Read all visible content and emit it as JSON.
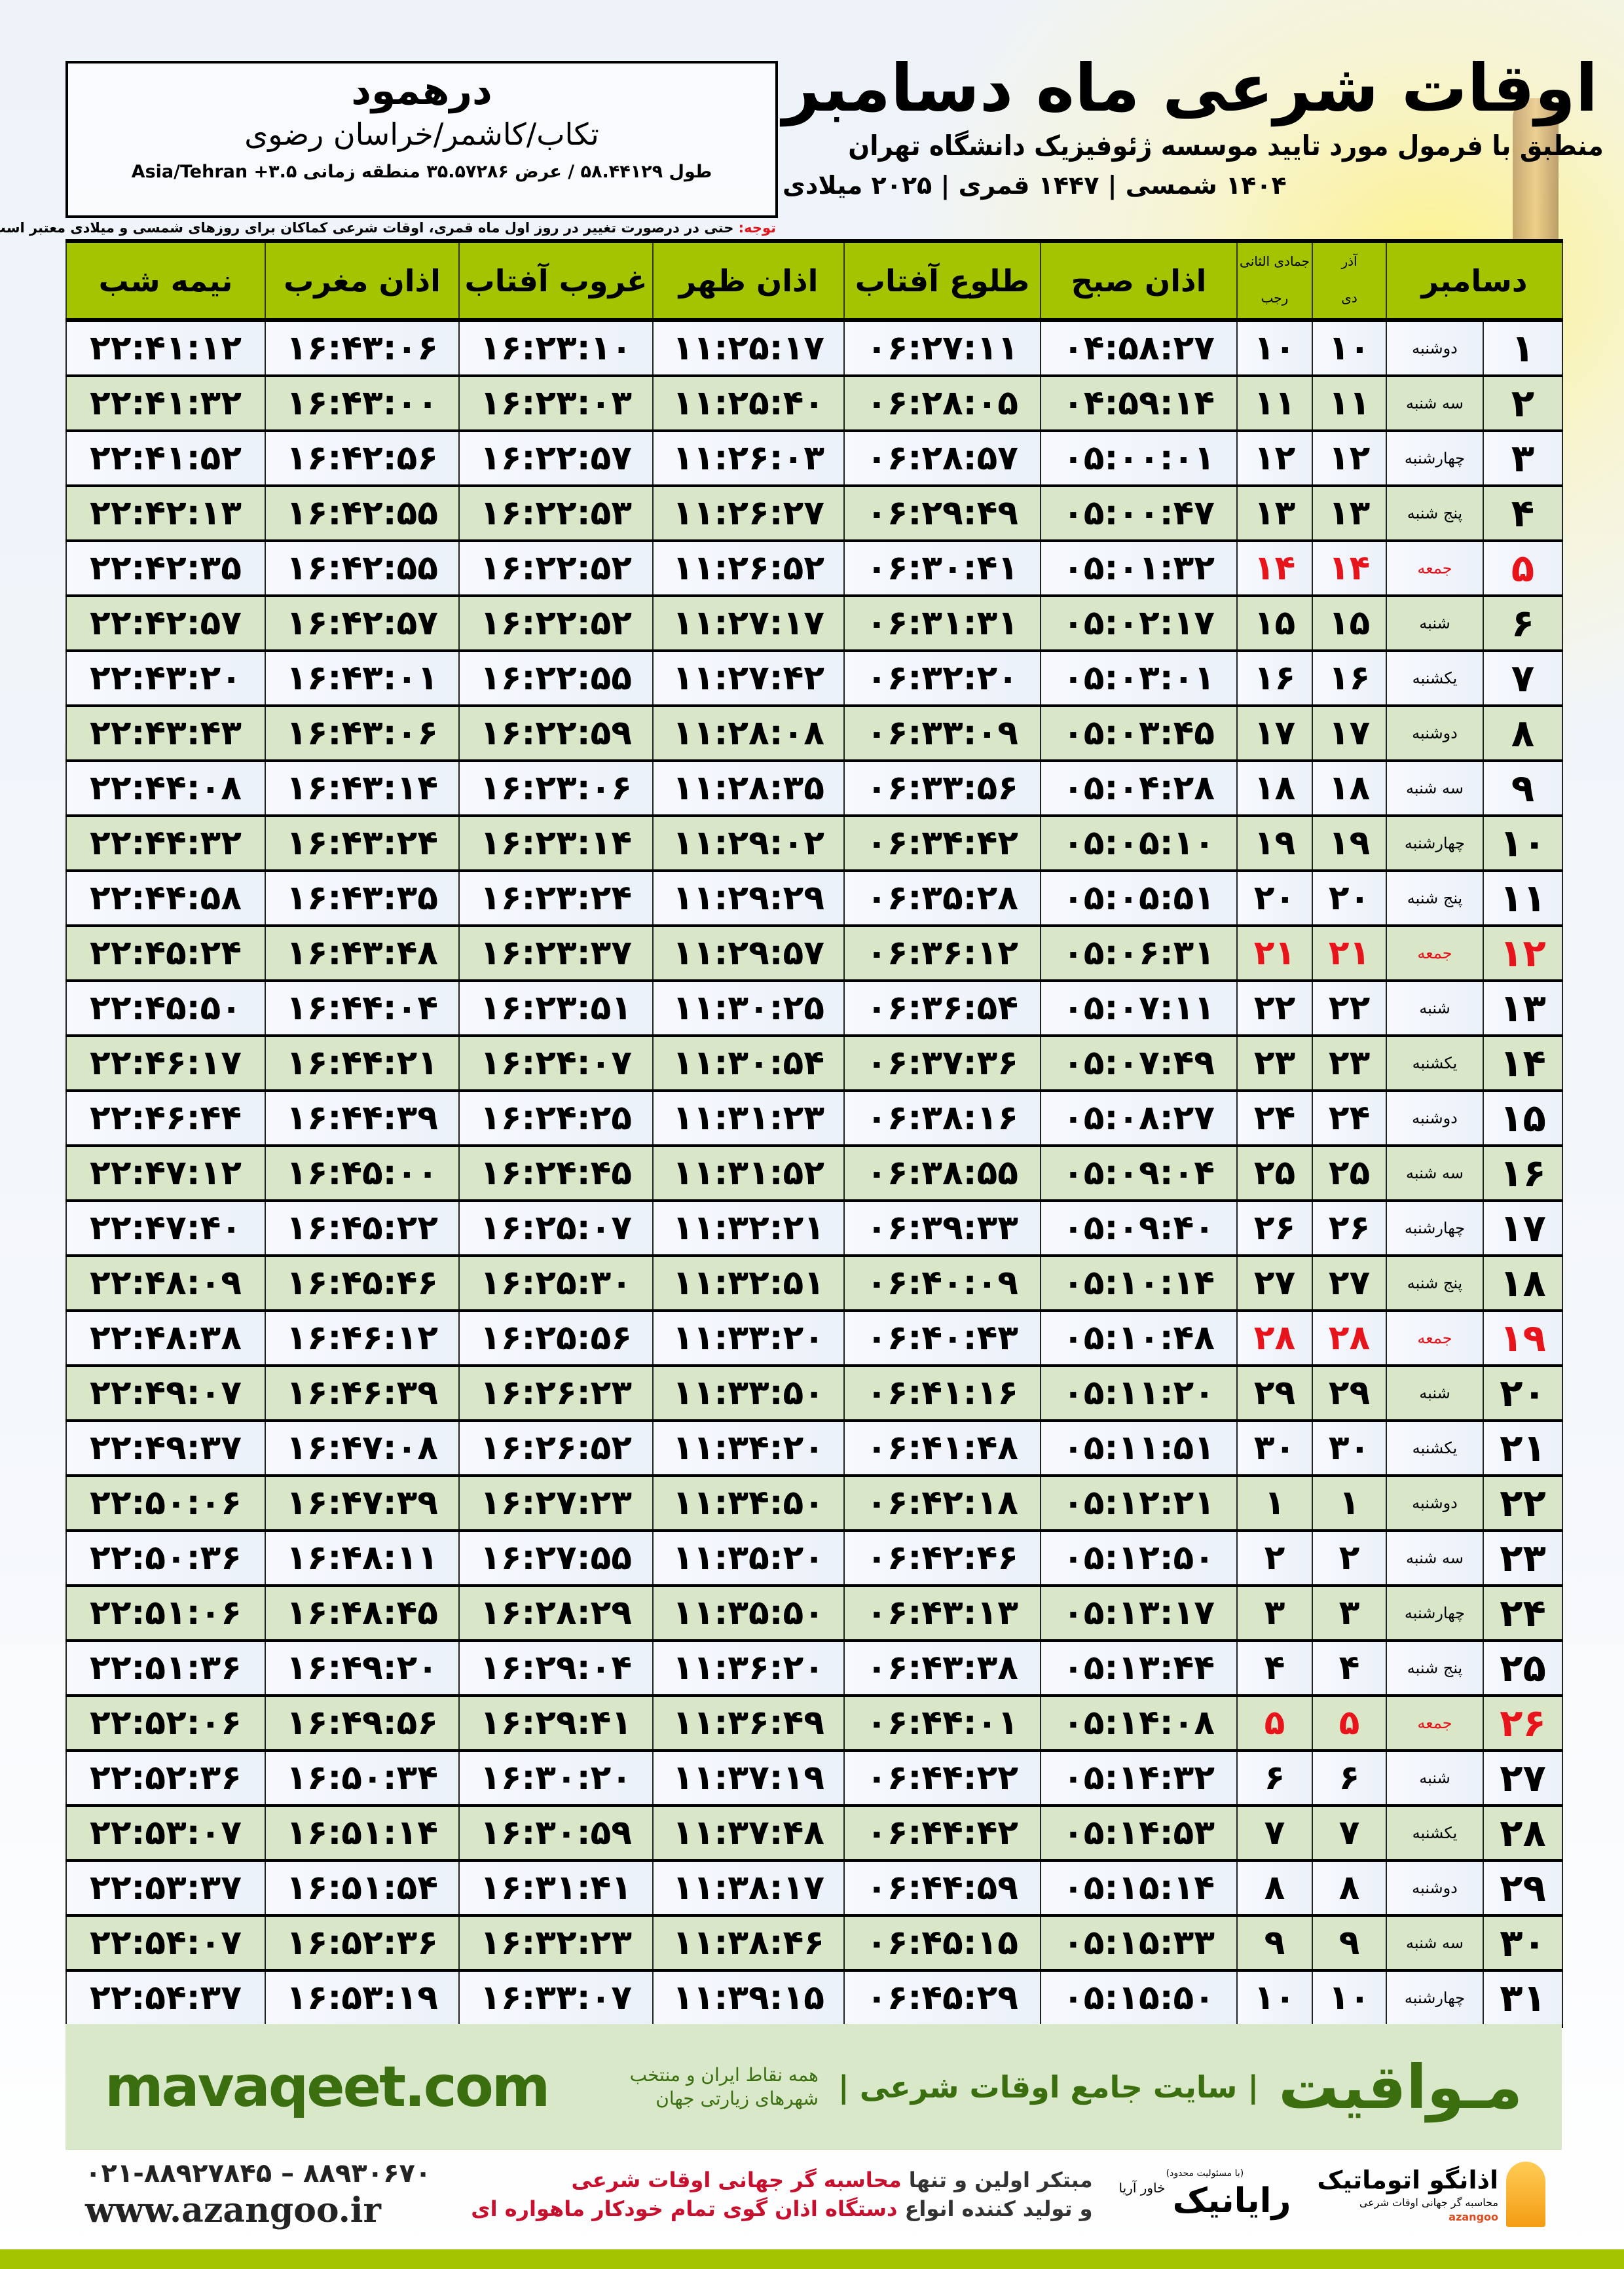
{
  "location": {
    "city": "درهمود",
    "region": "تکاب/کاشمر/خراسان رضوی",
    "coords": "طول ۵۸.۴۴۱۲۹ / عرض ۳۵.۵۷۲۸۶ منطقه زمانی ۳.۵+ Asia/Tehran"
  },
  "header": {
    "title": "اوقات شرعی ماه دسامبر",
    "subtitle": "منطبق با فرمول مورد تایید موسسه ژئوفیزیک دانشگاه تهران",
    "years": "۱۴۰۴ شمسی | ۱۴۴۷ قمری | ۲۰۲۵ میلادی",
    "note_label": "توجه:",
    "note_text": " حتی در درصورت تغییر در روز اول ماه قمری، اوقات شرعی کماکان برای روزهای شمسی و میلادی معتبر است."
  },
  "table": {
    "columns": {
      "day": "دسامبر",
      "shamsi_top": "آذر",
      "shamsi_bottom": "دی",
      "hijri_top": "جمادی الثانی",
      "hijri_bottom": "رجب",
      "fajr": "اذان صبح",
      "sunrise": "طلوع آفتاب",
      "dhuhr": "اذان ظهر",
      "sunset": "غروب آفتاب",
      "maghrib": "اذان مغرب",
      "midnight": "نیمه شب"
    },
    "colors": {
      "header": "#a5c400",
      "row_alt": "#d9e7c8",
      "friday": "#e8141c"
    },
    "rows": [
      [
        "۱",
        "دوشنبه",
        "۱۰",
        "۱۰",
        "۰۴:۵۸:۲۷",
        "۰۶:۲۷:۱۱",
        "۱۱:۲۵:۱۷",
        "۱۶:۲۳:۱۰",
        "۱۶:۴۳:۰۶",
        "۲۲:۴۱:۱۲"
      ],
      [
        "۲",
        "سه شنبه",
        "۱۱",
        "۱۱",
        "۰۴:۵۹:۱۴",
        "۰۶:۲۸:۰۵",
        "۱۱:۲۵:۴۰",
        "۱۶:۲۳:۰۳",
        "۱۶:۴۳:۰۰",
        "۲۲:۴۱:۳۲"
      ],
      [
        "۳",
        "چهارشنبه",
        "۱۲",
        "۱۲",
        "۰۵:۰۰:۰۱",
        "۰۶:۲۸:۵۷",
        "۱۱:۲۶:۰۳",
        "۱۶:۲۲:۵۷",
        "۱۶:۴۲:۵۶",
        "۲۲:۴۱:۵۲"
      ],
      [
        "۴",
        "پنج شنبه",
        "۱۳",
        "۱۳",
        "۰۵:۰۰:۴۷",
        "۰۶:۲۹:۴۹",
        "۱۱:۲۶:۲۷",
        "۱۶:۲۲:۵۳",
        "۱۶:۴۲:۵۵",
        "۲۲:۴۲:۱۳"
      ],
      [
        "۵",
        "جمعه",
        "۱۴",
        "۱۴",
        "۰۵:۰۱:۳۲",
        "۰۶:۳۰:۴۱",
        "۱۱:۲۶:۵۲",
        "۱۶:۲۲:۵۲",
        "۱۶:۴۲:۵۵",
        "۲۲:۴۲:۳۵"
      ],
      [
        "۶",
        "شنبه",
        "۱۵",
        "۱۵",
        "۰۵:۰۲:۱۷",
        "۰۶:۳۱:۳۱",
        "۱۱:۲۷:۱۷",
        "۱۶:۲۲:۵۲",
        "۱۶:۴۲:۵۷",
        "۲۲:۴۲:۵۷"
      ],
      [
        "۷",
        "یکشنبه",
        "۱۶",
        "۱۶",
        "۰۵:۰۳:۰۱",
        "۰۶:۳۲:۲۰",
        "۱۱:۲۷:۴۲",
        "۱۶:۲۲:۵۵",
        "۱۶:۴۳:۰۱",
        "۲۲:۴۳:۲۰"
      ],
      [
        "۸",
        "دوشنبه",
        "۱۷",
        "۱۷",
        "۰۵:۰۳:۴۵",
        "۰۶:۳۳:۰۹",
        "۱۱:۲۸:۰۸",
        "۱۶:۲۲:۵۹",
        "۱۶:۴۳:۰۶",
        "۲۲:۴۳:۴۳"
      ],
      [
        "۹",
        "سه شنبه",
        "۱۸",
        "۱۸",
        "۰۵:۰۴:۲۸",
        "۰۶:۳۳:۵۶",
        "۱۱:۲۸:۳۵",
        "۱۶:۲۳:۰۶",
        "۱۶:۴۳:۱۴",
        "۲۲:۴۴:۰۸"
      ],
      [
        "۱۰",
        "چهارشنبه",
        "۱۹",
        "۱۹",
        "۰۵:۰۵:۱۰",
        "۰۶:۳۴:۴۲",
        "۱۱:۲۹:۰۲",
        "۱۶:۲۳:۱۴",
        "۱۶:۴۳:۲۴",
        "۲۲:۴۴:۳۲"
      ],
      [
        "۱۱",
        "پنج شنبه",
        "۲۰",
        "۲۰",
        "۰۵:۰۵:۵۱",
        "۰۶:۳۵:۲۸",
        "۱۱:۲۹:۲۹",
        "۱۶:۲۳:۲۴",
        "۱۶:۴۳:۳۵",
        "۲۲:۴۴:۵۸"
      ],
      [
        "۱۲",
        "جمعه",
        "۲۱",
        "۲۱",
        "۰۵:۰۶:۳۱",
        "۰۶:۳۶:۱۲",
        "۱۱:۲۹:۵۷",
        "۱۶:۲۳:۳۷",
        "۱۶:۴۳:۴۸",
        "۲۲:۴۵:۲۴"
      ],
      [
        "۱۳",
        "شنبه",
        "۲۲",
        "۲۲",
        "۰۵:۰۷:۱۱",
        "۰۶:۳۶:۵۴",
        "۱۱:۳۰:۲۵",
        "۱۶:۲۳:۵۱",
        "۱۶:۴۴:۰۴",
        "۲۲:۴۵:۵۰"
      ],
      [
        "۱۴",
        "یکشنبه",
        "۲۳",
        "۲۳",
        "۰۵:۰۷:۴۹",
        "۰۶:۳۷:۳۶",
        "۱۱:۳۰:۵۴",
        "۱۶:۲۴:۰۷",
        "۱۶:۴۴:۲۱",
        "۲۲:۴۶:۱۷"
      ],
      [
        "۱۵",
        "دوشنبه",
        "۲۴",
        "۲۴",
        "۰۵:۰۸:۲۷",
        "۰۶:۳۸:۱۶",
        "۱۱:۳۱:۲۳",
        "۱۶:۲۴:۲۵",
        "۱۶:۴۴:۳۹",
        "۲۲:۴۶:۴۴"
      ],
      [
        "۱۶",
        "سه شنبه",
        "۲۵",
        "۲۵",
        "۰۵:۰۹:۰۴",
        "۰۶:۳۸:۵۵",
        "۱۱:۳۱:۵۲",
        "۱۶:۲۴:۴۵",
        "۱۶:۴۵:۰۰",
        "۲۲:۴۷:۱۲"
      ],
      [
        "۱۷",
        "چهارشنبه",
        "۲۶",
        "۲۶",
        "۰۵:۰۹:۴۰",
        "۰۶:۳۹:۳۳",
        "۱۱:۳۲:۲۱",
        "۱۶:۲۵:۰۷",
        "۱۶:۴۵:۲۲",
        "۲۲:۴۷:۴۰"
      ],
      [
        "۱۸",
        "پنج شنبه",
        "۲۷",
        "۲۷",
        "۰۵:۱۰:۱۴",
        "۰۶:۴۰:۰۹",
        "۱۱:۳۲:۵۱",
        "۱۶:۲۵:۳۰",
        "۱۶:۴۵:۴۶",
        "۲۲:۴۸:۰۹"
      ],
      [
        "۱۹",
        "جمعه",
        "۲۸",
        "۲۸",
        "۰۵:۱۰:۴۸",
        "۰۶:۴۰:۴۳",
        "۱۱:۳۳:۲۰",
        "۱۶:۲۵:۵۶",
        "۱۶:۴۶:۱۲",
        "۲۲:۴۸:۳۸"
      ],
      [
        "۲۰",
        "شنبه",
        "۲۹",
        "۲۹",
        "۰۵:۱۱:۲۰",
        "۰۶:۴۱:۱۶",
        "۱۱:۳۳:۵۰",
        "۱۶:۲۶:۲۳",
        "۱۶:۴۶:۳۹",
        "۲۲:۴۹:۰۷"
      ],
      [
        "۲۱",
        "یکشنبه",
        "۳۰",
        "۳۰",
        "۰۵:۱۱:۵۱",
        "۰۶:۴۱:۴۸",
        "۱۱:۳۴:۲۰",
        "۱۶:۲۶:۵۲",
        "۱۶:۴۷:۰۸",
        "۲۲:۴۹:۳۷"
      ],
      [
        "۲۲",
        "دوشنبه",
        "۱",
        "۱",
        "۰۵:۱۲:۲۱",
        "۰۶:۴۲:۱۸",
        "۱۱:۳۴:۵۰",
        "۱۶:۲۷:۲۳",
        "۱۶:۴۷:۳۹",
        "۲۲:۵۰:۰۶"
      ],
      [
        "۲۳",
        "سه شنبه",
        "۲",
        "۲",
        "۰۵:۱۲:۵۰",
        "۰۶:۴۲:۴۶",
        "۱۱:۳۵:۲۰",
        "۱۶:۲۷:۵۵",
        "۱۶:۴۸:۱۱",
        "۲۲:۵۰:۳۶"
      ],
      [
        "۲۴",
        "چهارشنبه",
        "۳",
        "۳",
        "۰۵:۱۳:۱۷",
        "۰۶:۴۳:۱۳",
        "۱۱:۳۵:۵۰",
        "۱۶:۲۸:۲۹",
        "۱۶:۴۸:۴۵",
        "۲۲:۵۱:۰۶"
      ],
      [
        "۲۵",
        "پنج شنبه",
        "۴",
        "۴",
        "۰۵:۱۳:۴۴",
        "۰۶:۴۳:۳۸",
        "۱۱:۳۶:۲۰",
        "۱۶:۲۹:۰۴",
        "۱۶:۴۹:۲۰",
        "۲۲:۵۱:۳۶"
      ],
      [
        "۲۶",
        "جمعه",
        "۵",
        "۵",
        "۰۵:۱۴:۰۸",
        "۰۶:۴۴:۰۱",
        "۱۱:۳۶:۴۹",
        "۱۶:۲۹:۴۱",
        "۱۶:۴۹:۵۶",
        "۲۲:۵۲:۰۶"
      ],
      [
        "۲۷",
        "شنبه",
        "۶",
        "۶",
        "۰۵:۱۴:۳۲",
        "۰۶:۴۴:۲۲",
        "۱۱:۳۷:۱۹",
        "۱۶:۳۰:۲۰",
        "۱۶:۵۰:۳۴",
        "۲۲:۵۲:۳۶"
      ],
      [
        "۲۸",
        "یکشنبه",
        "۷",
        "۷",
        "۰۵:۱۴:۵۳",
        "۰۶:۴۴:۴۲",
        "۱۱:۳۷:۴۸",
        "۱۶:۳۰:۵۹",
        "۱۶:۵۱:۱۴",
        "۲۲:۵۳:۰۷"
      ],
      [
        "۲۹",
        "دوشنبه",
        "۸",
        "۸",
        "۰۵:۱۵:۱۴",
        "۰۶:۴۴:۵۹",
        "۱۱:۳۸:۱۷",
        "۱۶:۳۱:۴۱",
        "۱۶:۵۱:۵۴",
        "۲۲:۵۳:۳۷"
      ],
      [
        "۳۰",
        "سه شنبه",
        "۹",
        "۹",
        "۰۵:۱۵:۳۳",
        "۰۶:۴۵:۱۵",
        "۱۱:۳۸:۴۶",
        "۱۶:۳۲:۲۳",
        "۱۶:۵۲:۳۶",
        "۲۲:۵۴:۰۷"
      ],
      [
        "۳۱",
        "چهارشنبه",
        "۱۰",
        "۱۰",
        "۰۵:۱۵:۵۰",
        "۰۶:۴۵:۲۹",
        "۱۱:۳۹:۱۵",
        "۱۶:۳۳:۰۷",
        "۱۶:۵۳:۱۹",
        "۲۲:۵۴:۳۷"
      ]
    ]
  },
  "promo": {
    "brand": "مـواقیت",
    "tagline": "| سایت جامع اوقات شرعی |",
    "tagline2": "همه نقاط ایران و منتخب شهرهای زیارتی جهان",
    "site": "mavaqeet.com"
  },
  "footer": {
    "phones": "۰۲۱-۸۸۹۲۷۸۴۵ – ۸۸۹۳۰۶۷۰",
    "website": "www.azangoo.ir",
    "line1_a": "مبتکر اولین و تنها ",
    "line1_b": "محاسبه گر جهانی اوقات شرعی",
    "line2_a": "و تولید کننده انواع ",
    "line2_b": "دستگاه اذان گوی تمام خودکار ماهواره ای",
    "rayanik_note": "(با مسئولیت محدود)",
    "rayanik_name": "رایانیک",
    "rayanik_sub": "خاور آریا",
    "azangoo_name": "اذانگو اتوماتیک",
    "azangoo_desc": "محاسبه گر جهانی اوقات شرعی",
    "azangoo_latin": "azangoo"
  }
}
